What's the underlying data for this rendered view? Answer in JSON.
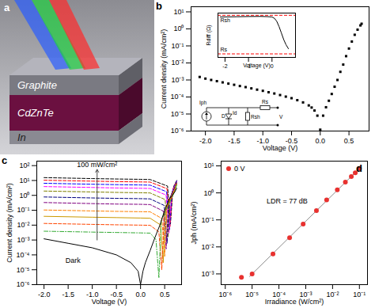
{
  "chart_data": [
    {
      "panel_label": "a",
      "type": "illustration",
      "layers": [
        "Graphite",
        "CdZnTe",
        "In"
      ]
    },
    {
      "panel_label": "b",
      "type": "scatter",
      "x_label": "Voltage (V)",
      "y_label": "Current density (mA/cm²)",
      "log": "y",
      "xlim": [
        -2.25,
        0.85
      ],
      "ylim": [
        1e-06,
        20
      ],
      "xticks": [
        {
          "value": -2,
          "label": "-2.0"
        },
        {
          "value": -1.5,
          "label": "-1.5"
        },
        {
          "value": -1,
          "label": "-1.0"
        },
        {
          "value": -0.5,
          "label": "-0.5"
        },
        {
          "value": 0,
          "label": "0.0"
        },
        0.5
      ],
      "yticks": [
        {
          "value": 1e-06,
          "label": "10⁻⁶"
        },
        {
          "value": 1e-05,
          "label": "10⁻⁵"
        },
        {
          "value": 0.0001,
          "label": "10⁻⁴"
        },
        {
          "value": 0.001,
          "label": "10⁻³"
        },
        {
          "value": 0.01,
          "label": "10⁻²"
        },
        {
          "value": 0.1,
          "label": "10⁻¹"
        },
        {
          "value": 1,
          "label": "10⁰"
        },
        {
          "value": 10,
          "label": "10¹"
        }
      ],
      "series": [
        {
          "color": "#000000",
          "marker": "square",
          "x": [
            -2.1,
            -2.0,
            -1.9,
            -1.8,
            -1.7,
            -1.6,
            -1.5,
            -1.4,
            -1.3,
            -1.2,
            -1.1,
            -1.0,
            -0.9,
            -0.8,
            -0.7,
            -0.6,
            -0.5,
            -0.4,
            -0.3,
            -0.2,
            -0.15,
            -0.1,
            -0.05,
            0,
            0.05,
            0.1,
            0.15,
            0.2,
            0.25,
            0.3,
            0.35,
            0.4,
            0.45,
            0.5,
            0.55,
            0.6,
            0.65,
            0.7,
            0.72
          ],
          "values": [
            0.0015,
            0.0012,
            0.001,
            0.00085,
            0.00072,
            0.00061,
            0.00052,
            0.00044,
            0.00038,
            0.00032,
            0.00027,
            0.00023,
            0.00019,
            0.00016,
            0.00013,
            0.000105,
            8.5e-05,
            6.5e-05,
            4.8e-05,
            3.2e-05,
            2.4e-05,
            1.6e-05,
            8e-06,
            1.2e-06,
            8e-06,
            2.5e-05,
            6e-05,
            0.00015,
            0.0004,
            0.001,
            0.003,
            0.008,
            0.025,
            0.07,
            0.18,
            0.45,
            0.9,
            1.6,
            2.0
          ]
        }
      ],
      "inset": {
        "type": "line",
        "x_label": "Voltage (V)",
        "y_label": "Rdiff (Ω)",
        "log": "y",
        "xlim": [
          -2.3,
          1
        ],
        "ylim": [
          10,
          10000000.0
        ],
        "xticks": [
          -2,
          -1,
          0
        ],
        "tick_labels": "x",
        "series": [
          {
            "color": "#000000",
            "x": [
              -2.2,
              -1.5,
              -1,
              -0.5,
              -0.2,
              0,
              0.1,
              0.2,
              0.3,
              0.4,
              0.5,
              0.6,
              0.7
            ],
            "values": [
              3000000.0,
              3200000.0,
              3400000.0,
              3500000.0,
              3300000.0,
              3000000.0,
              2000000.0,
              800000.0,
              150000.0,
              20000.0,
              2500.0,
              500,
              150
            ]
          }
        ],
        "reference_lines": [
          {
            "label": "Rsh",
            "value": 5000000.0,
            "color": "#ff0000",
            "line_style": "dashed"
          },
          {
            "label": "Rs",
            "value": 30,
            "color": "#ff0000",
            "line_style": "dashed"
          }
        ]
      },
      "circuit_labels": {
        "source": "Iph",
        "diode": "D",
        "diode_current": "Id",
        "shunt": "Rsh",
        "series": "Rs",
        "output": "V"
      }
    },
    {
      "panel_label": "c",
      "type": "line",
      "x_label": "Voltage (V)",
      "y_label": "Current density (mA/cm²)",
      "log": "y",
      "xlim": [
        -2.15,
        0.85
      ],
      "ylim": [
        1e-06,
        200
      ],
      "xticks": [
        {
          "value": -2,
          "label": "-2.0"
        },
        {
          "value": -1.5,
          "label": "-1.5"
        },
        {
          "value": -1,
          "label": "-1.0"
        },
        {
          "value": -0.5,
          "label": "-0.5"
        },
        {
          "value": 0,
          "label": "0.0"
        },
        0.5
      ],
      "yticks": [
        {
          "value": 1e-06,
          "label": "10⁻⁶"
        },
        {
          "value": 1e-05,
          "label": "10⁻⁵"
        },
        {
          "value": 0.0001,
          "label": "10⁻⁴"
        },
        {
          "value": 0.001,
          "label": "10⁻³"
        },
        {
          "value": 0.01,
          "label": "10⁻²"
        },
        {
          "value": 0.1,
          "label": "10⁻¹"
        },
        {
          "value": 1,
          "label": "10⁰"
        },
        {
          "value": 10,
          "label": "10¹"
        },
        {
          "value": 100,
          "label": "10²"
        }
      ],
      "series": [
        {
          "color": "#000000",
          "line_style": "dashed",
          "x": [
            -2,
            -1,
            -0.5,
            0,
            0.2,
            0.56,
            0.62,
            0.67,
            0.7,
            0.75
          ],
          "values": [
            15.6,
            13.4,
            12.6,
            12,
            11.6,
            4.2,
            0.012,
            2.5,
            5,
            10
          ]
        },
        {
          "color": "#ff0000",
          "line_style": "dashed",
          "x": [
            -2,
            -1,
            -0.5,
            0,
            0.2,
            0.55,
            0.61,
            0.66,
            0.7,
            0.75
          ],
          "values": [
            10.4,
            9,
            8.4,
            8,
            7.8,
            2.8,
            0.008,
            2,
            4.5,
            9
          ]
        },
        {
          "color": "#0000ff",
          "line_style": "dashed",
          "x": [
            -2,
            -1,
            -0.5,
            0,
            0.2,
            0.54,
            0.6,
            0.65,
            0.7,
            0.75
          ],
          "values": [
            6.5,
            5.6,
            5.25,
            5,
            4.85,
            1.75,
            0.005,
            1.5,
            4,
            9
          ]
        },
        {
          "color": "#ff00ff",
          "line_style": "dashed",
          "x": [
            -2,
            -1,
            -0.5,
            0,
            0.2,
            0.53,
            0.59,
            0.64,
            0.7,
            0.75
          ],
          "values": [
            3.9,
            3.4,
            3.15,
            3,
            2.9,
            1.05,
            0.003,
            1.2,
            3.5,
            8.5
          ]
        },
        {
          "color": "#808000",
          "line_style": "dashed",
          "x": [
            -2,
            -1,
            -0.5,
            0,
            0.2,
            0.51,
            0.57,
            0.62,
            0.7,
            0.75
          ],
          "values": [
            1.95,
            1.7,
            1.58,
            1.5,
            1.45,
            0.52,
            0.0015,
            0.9,
            3,
            8
          ]
        },
        {
          "color": "#000080",
          "line_style": "dashed",
          "x": [
            -2,
            -1,
            -0.5,
            0,
            0.2,
            0.49,
            0.55,
            0.6,
            0.7,
            0.75
          ],
          "values": [
            0.78,
            0.67,
            0.63,
            0.6,
            0.58,
            0.21,
            0.0006,
            0.6,
            2.8,
            7.5
          ]
        },
        {
          "color": "#800080",
          "line_style": "dashed",
          "x": [
            -2,
            -1,
            -0.5,
            0,
            0.2,
            0.47,
            0.53,
            0.58,
            0.7,
            0.75
          ],
          "values": [
            0.33,
            0.28,
            0.26,
            0.25,
            0.24,
            0.088,
            0.00025,
            0.4,
            2.5,
            7
          ]
        },
        {
          "color": "#ff8000",
          "line_style": "dashed",
          "x": [
            -2,
            -1,
            -0.5,
            0,
            0.2,
            0.44,
            0.5,
            0.55,
            0.7,
            0.75
          ],
          "values": [
            0.104,
            0.09,
            0.084,
            0.08,
            0.078,
            0.028,
            8e-05,
            0.2,
            2.2,
            6.5
          ]
        },
        {
          "color": "#cc9900",
          "line_style": "solid",
          "x": [
            -2,
            -1,
            -0.5,
            0,
            0.2,
            0.41,
            0.47,
            0.52,
            0.7,
            0.75
          ],
          "values": [
            0.039,
            0.034,
            0.032,
            0.03,
            0.029,
            0.0105,
            3e-05,
            0.12,
            2,
            6
          ]
        },
        {
          "color": "#ff4500",
          "line_style": "dashed",
          "x": [
            -2,
            -1,
            -0.5,
            0,
            0.2,
            0.38,
            0.44,
            0.49,
            0.7,
            0.75
          ],
          "values": [
            0.013,
            0.0112,
            0.0105,
            0.01,
            0.0097,
            0.0035,
            1e-05,
            0.06,
            1.8,
            5.5
          ]
        },
        {
          "color": "#33aa33",
          "line_style": "dashdot",
          "x": [
            -2,
            -1,
            -0.5,
            0,
            0.2,
            0.32,
            0.38,
            0.43,
            0.7,
            0.75
          ],
          "values": [
            0.0039,
            0.0034,
            0.0032,
            0.003,
            0.0029,
            0.00105,
            3e-06,
            0.02,
            1.6,
            5
          ]
        },
        {
          "color": "#000000",
          "line_style": "solid",
          "x": [
            -2,
            -1.5,
            -1,
            -0.5,
            -0.2,
            -0.05,
            0,
            0.05,
            0.1,
            0.2,
            0.3,
            0.4,
            0.5,
            0.6,
            0.7,
            0.75
          ],
          "values": [
            0.0012,
            0.0006,
            0.0003,
            0.0001,
            3e-05,
            8e-06,
            1e-06,
            8e-06,
            3e-05,
            0.0002,
            0.0015,
            0.01,
            0.1,
            0.6,
            1.5,
            3
          ]
        }
      ],
      "annotations": [
        {
          "text": "100 mW/cm²",
          "x": -0.9,
          "y": 110
        },
        {
          "text": "Dark",
          "x": -1.4,
          "y": 4e-05
        }
      ],
      "arrow": {
        "x": -0.9,
        "y1": 0.001,
        "y2": 55
      }
    },
    {
      "panel_label": "d",
      "type": "scatter",
      "x_label": "Irradiance (W/cm²)",
      "y_label": "Jph (mA/cm²)",
      "log": true,
      "xlim": [
        7e-07,
        0.2
      ],
      "ylim": [
        0.0004,
        15
      ],
      "xticks": [
        {
          "value": 1e-06,
          "label": "10⁻⁶"
        },
        {
          "value": 1e-05,
          "label": "10⁻⁵"
        },
        {
          "value": 0.0001,
          "label": "10⁻⁴"
        },
        {
          "value": 0.001,
          "label": "10⁻³"
        },
        {
          "value": 0.01,
          "label": "10⁻²"
        },
        {
          "value": 0.1,
          "label": "10⁻¹"
        }
      ],
      "yticks": [
        {
          "value": 0.001,
          "label": "10⁻³"
        },
        {
          "value": 0.01,
          "label": "10⁻²"
        },
        {
          "value": 0.1,
          "label": "10⁻¹"
        },
        {
          "value": 1,
          "label": "10⁰"
        },
        {
          "value": 10,
          "label": "10¹"
        }
      ],
      "legend": "top-left",
      "series": [
        {
          "type": "line",
          "color": "#8c8c8c",
          "x": [
            8e-06,
            0.1
          ],
          "values": [
            0.0008,
            8
          ]
        },
        {
          "name": "0 V",
          "type": "scatter",
          "color": "#e8312f",
          "marker": "circle",
          "x": [
            4e-06,
            1e-05,
            6e-05,
            0.00025,
            0.0008,
            0.0025,
            0.006,
            0.015,
            0.03,
            0.05,
            0.07,
            0.1
          ],
          "values": [
            0.00075,
            0.001,
            0.0055,
            0.022,
            0.07,
            0.22,
            0.55,
            1.3,
            2.5,
            4,
            5.5,
            8
          ]
        }
      ],
      "annotations": [
        {
          "text": "LDR = 77 dB",
          "x": 0.0002,
          "y": 0.5
        }
      ]
    }
  ]
}
